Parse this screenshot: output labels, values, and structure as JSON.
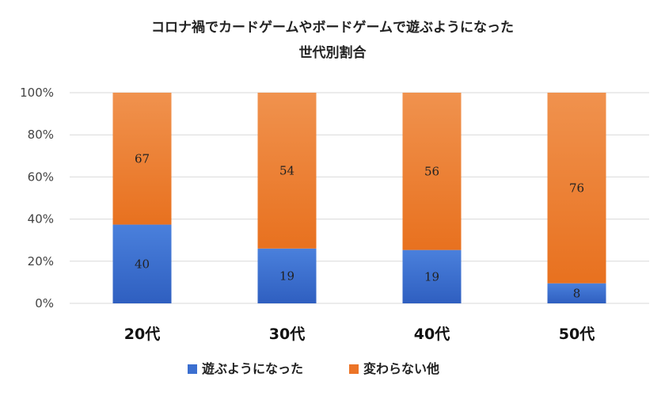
{
  "chart_data": {
    "type": "bar",
    "stacked": true,
    "percent_stacked": true,
    "title_line1": "コロナ禍でカードゲームやボードゲームで遊ぶようになった",
    "title_line2": "世代別割合",
    "categories": [
      "20代",
      "30代",
      "40代",
      "50代"
    ],
    "series": [
      {
        "name": "遊ぶようになった",
        "values": [
          40,
          19,
          19,
          8
        ],
        "color": "#3b6fd0"
      },
      {
        "name": "変わらない他",
        "values": [
          67,
          54,
          56,
          76
        ],
        "color": "#ec7427"
      }
    ],
    "y_ticks": [
      "0%",
      "20%",
      "40%",
      "60%",
      "80%",
      "100%"
    ],
    "ylim": [
      0,
      100
    ],
    "grid": true,
    "legend_position": "bottom"
  }
}
